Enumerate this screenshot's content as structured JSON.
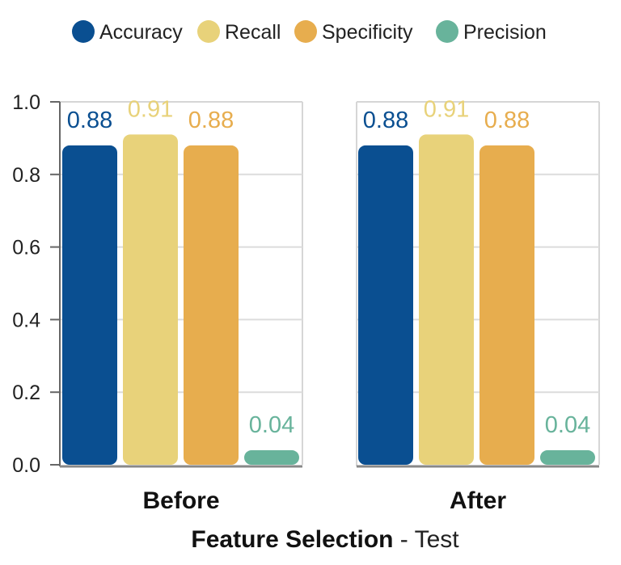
{
  "chart_data": {
    "type": "bar",
    "title": "",
    "xlabel": "",
    "ylabel": "",
    "ylim": [
      0,
      1.0
    ],
    "y_ticks": [
      "0.0",
      "0.2",
      "0.4",
      "0.6",
      "0.8",
      "1.0"
    ],
    "grid": true,
    "legend_position": "top",
    "series": [
      {
        "name": "Accuracy",
        "color": "#0a4f91"
      },
      {
        "name": "Recall",
        "color": "#e8d27a"
      },
      {
        "name": "Specificity",
        "color": "#e7ad4e"
      },
      {
        "name": "Precision",
        "color": "#68b39b"
      }
    ],
    "panels": [
      {
        "category": "Before",
        "values": [
          0.88,
          0.91,
          0.88,
          0.04
        ],
        "value_labels": [
          "0.88",
          "0.91",
          "0.88",
          "0.04"
        ]
      },
      {
        "category": "After",
        "values": [
          0.88,
          0.91,
          0.88,
          0.04
        ],
        "value_labels": [
          "0.88",
          "0.91",
          "0.88",
          "0.04"
        ]
      }
    ],
    "bottom_title": {
      "main": "Feature Selection",
      "sub": " - Test"
    }
  }
}
